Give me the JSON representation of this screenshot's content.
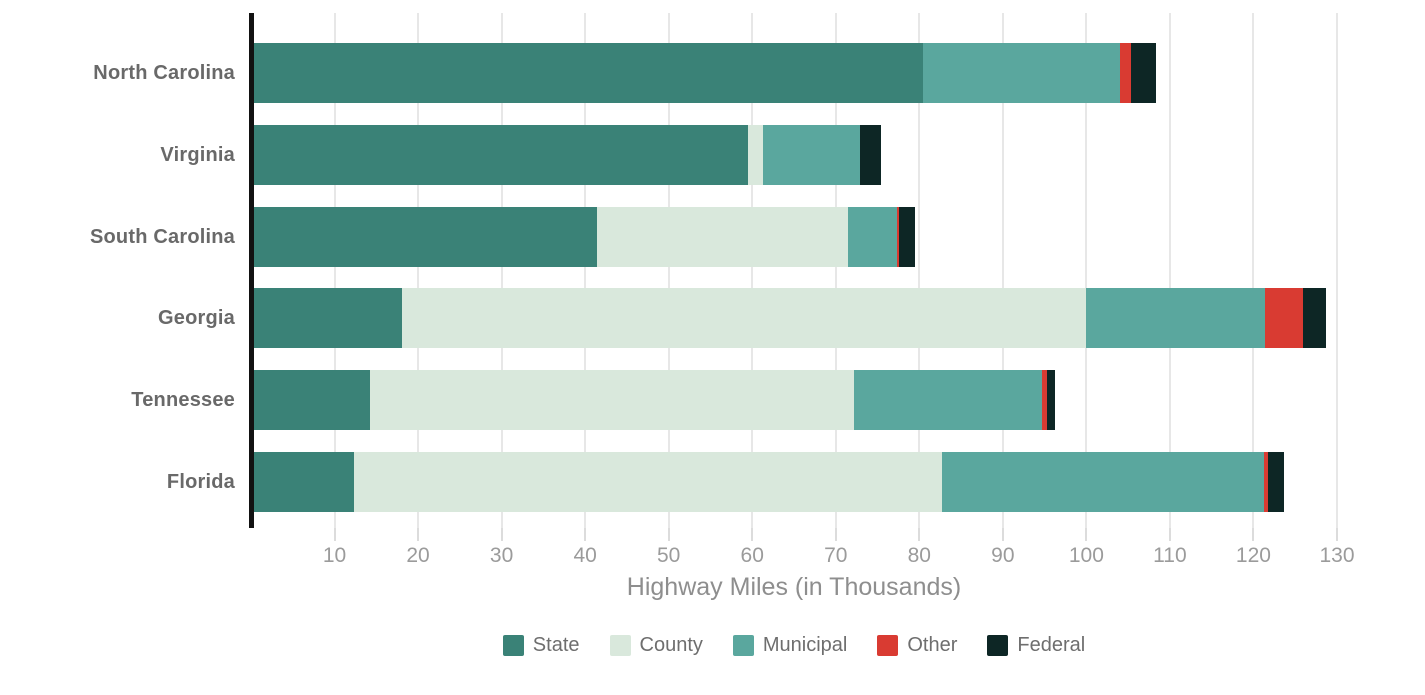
{
  "chart_data": {
    "type": "bar",
    "orientation": "horizontal",
    "stacked": true,
    "title": "",
    "xlabel": "Highway Miles (in Thousands)",
    "ylabel": "",
    "categories": [
      "North Carolina",
      "Virginia",
      "South Carolina",
      "Georgia",
      "Tennessee",
      "Florida"
    ],
    "series": [
      {
        "name": "State",
        "color": "#3A8277",
        "values": [
          80.5,
          59.5,
          41.4,
          18.1,
          14.3,
          12.3
        ]
      },
      {
        "name": "County",
        "color": "#D9E8DC",
        "values": [
          0,
          1.8,
          30.1,
          81.9,
          57.9,
          70.4
        ]
      },
      {
        "name": "Municipal",
        "color": "#5AA79E",
        "values": [
          23.5,
          11.6,
          5.8,
          21.4,
          22.5,
          38.6
        ]
      },
      {
        "name": "Other",
        "color": "#D93B32",
        "values": [
          1.3,
          0,
          0.3,
          4.5,
          0.6,
          0.4
        ]
      },
      {
        "name": "Federal",
        "color": "#0D2625",
        "values": [
          3.0,
          2.5,
          1.9,
          2.8,
          1.0,
          2.0
        ]
      }
    ],
    "totals": [
      108.3,
      75.4,
      79.5,
      128.7,
      96.3,
      123.7
    ],
    "xlim": [
      0,
      130
    ],
    "xticks": [
      10,
      20,
      30,
      40,
      50,
      60,
      70,
      80,
      90,
      100,
      110,
      120,
      130
    ],
    "grid": true,
    "legend_position": "bottom",
    "axis_color": "#121212",
    "grid_color": "#e7e7e7"
  }
}
